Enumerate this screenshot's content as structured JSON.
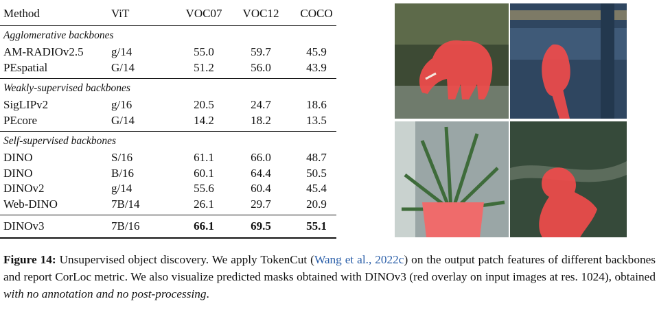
{
  "table": {
    "header": [
      "Method",
      "ViT",
      "VOC07",
      "VOC12",
      "COCO"
    ],
    "groups": [
      {
        "title": "Agglomerative backbones",
        "rows": [
          [
            "AM-RADIOv2.5",
            "g/14",
            "55.0",
            "59.7",
            "45.9"
          ],
          [
            "PEspatial",
            "G/14",
            "51.2",
            "56.0",
            "43.9"
          ]
        ]
      },
      {
        "title": "Weakly-supervised backbones",
        "rows": [
          [
            "SigLIPv2",
            "g/16",
            "20.5",
            "24.7",
            "18.6"
          ],
          [
            "PEcore",
            "G/14",
            "14.2",
            "18.2",
            "13.5"
          ]
        ]
      },
      {
        "title": "Self-supervised backbones",
        "rows": [
          [
            "DINO",
            "S/16",
            "61.1",
            "66.0",
            "48.7"
          ],
          [
            "DINO",
            "B/16",
            "60.1",
            "64.4",
            "50.5"
          ],
          [
            "DINOv2",
            "g/14",
            "55.6",
            "60.4",
            "45.4"
          ],
          [
            "Web-DINO",
            "7B/14",
            "26.1",
            "29.7",
            "20.9"
          ]
        ]
      }
    ],
    "final_rows": [
      [
        "DINOv3",
        "7B/16",
        "66.1",
        "69.5",
        "55.1"
      ]
    ]
  },
  "caption": {
    "label": "Figure 14:",
    "text_1": " Unsupervised object discovery. We apply TokenCut (",
    "citation": "Wang et al., 2022c",
    "text_2": ") on the output patch features of different backbones and report CorLoc metric. We also visualize predicted masks obtained with DINOv3 (red overlay on input images at res. 1024), obtained ",
    "emphasis": "with no annotation and no post-processing",
    "text_3": "."
  }
}
